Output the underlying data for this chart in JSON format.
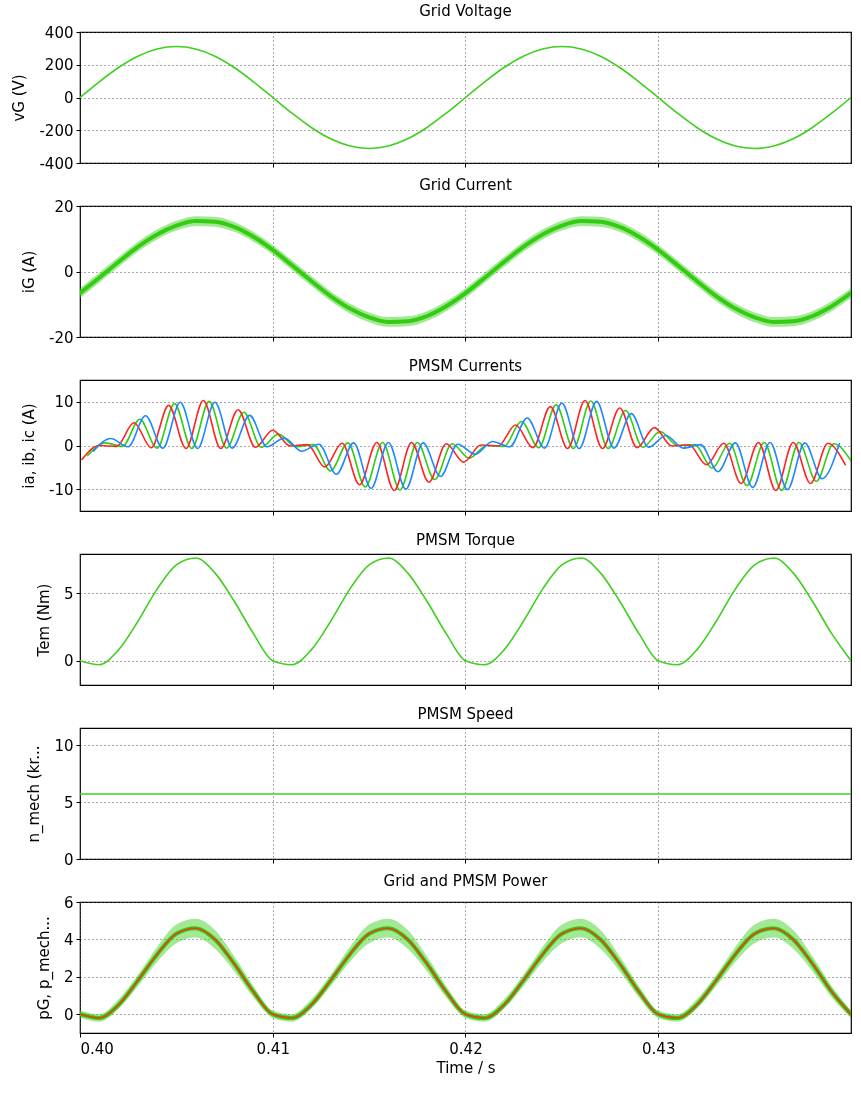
{
  "chart_data": [
    {
      "type": "line",
      "title": "Grid Voltage",
      "ylabel": "vG (V)",
      "xlim": [
        0.4,
        0.44
      ],
      "xticks": [
        0.41,
        0.42,
        0.43
      ],
      "ylim": [
        -400,
        400
      ],
      "yticks": [
        -400,
        -200,
        0,
        200,
        400
      ],
      "grid": true,
      "tick_labels": "y",
      "x": [
        0.4,
        0.401,
        0.402,
        0.403,
        0.404,
        0.405,
        0.406,
        0.407,
        0.408,
        0.409,
        0.41,
        0.411,
        0.412,
        0.413,
        0.414,
        0.415,
        0.416,
        0.417,
        0.418,
        0.419,
        0.42,
        0.421,
        0.422,
        0.423,
        0.424,
        0.425,
        0.426,
        0.427,
        0.428,
        0.429,
        0.43,
        0.431,
        0.432,
        0.433,
        0.434,
        0.435,
        0.436,
        0.437,
        0.438,
        0.439,
        0.44
      ],
      "series": [
        {
          "color": "#3fcf1f",
          "values": [
            0,
            96,
            183,
            252,
            296,
            311,
            296,
            252,
            183,
            96,
            0,
            -96,
            -183,
            -252,
            -296,
            -311,
            -296,
            -252,
            -183,
            -96,
            0,
            96,
            183,
            252,
            296,
            311,
            296,
            252,
            183,
            96,
            0,
            -96,
            -183,
            -252,
            -296,
            -311,
            -296,
            -252,
            -183,
            -96,
            0
          ]
        }
      ]
    },
    {
      "type": "line",
      "title": "Grid Current",
      "ylabel": "iG (A)",
      "xlim": [
        0.4,
        0.44
      ],
      "xticks": [
        0.41,
        0.42,
        0.43
      ],
      "ylim": [
        -20,
        20
      ],
      "yticks": [
        -20,
        0,
        20
      ],
      "grid": true,
      "tick_labels": "y",
      "x": [
        0.4,
        0.401,
        0.402,
        0.403,
        0.404,
        0.405,
        0.406,
        0.407,
        0.408,
        0.409,
        0.41,
        0.411,
        0.412,
        0.413,
        0.414,
        0.415,
        0.416,
        0.417,
        0.418,
        0.419,
        0.42,
        0.421,
        0.422,
        0.423,
        0.424,
        0.425,
        0.426,
        0.427,
        0.428,
        0.429,
        0.43,
        0.431,
        0.432,
        0.433,
        0.434,
        0.435,
        0.436,
        0.437,
        0.438,
        0.439,
        0.44
      ],
      "series": [
        {
          "color": "#33cc11",
          "values": [
            -6.6,
            -1.9,
            2.9,
            7.5,
            11.3,
            14.0,
            15.4,
            15.2,
            13.6,
            10.6,
            6.6,
            1.9,
            -2.9,
            -7.5,
            -11.3,
            -14.0,
            -15.4,
            -15.2,
            -13.6,
            -10.6,
            -6.6,
            -1.9,
            2.9,
            7.5,
            11.3,
            14.0,
            15.4,
            15.2,
            13.6,
            10.6,
            6.6,
            1.9,
            -2.9,
            -7.5,
            -11.3,
            -14.0,
            -15.4,
            -15.2,
            -13.6,
            -10.6,
            -6.6
          ],
          "lower": [
            -8.1,
            -3.4,
            1.4,
            6.0,
            9.8,
            12.5,
            13.9,
            13.7,
            12.1,
            9.1,
            5.1,
            0.4,
            -4.4,
            -9.0,
            -12.8,
            -15.5,
            -16.9,
            -16.7,
            -15.1,
            -12.1,
            -8.1,
            -3.4,
            1.4,
            6.0,
            9.8,
            12.5,
            13.9,
            13.7,
            12.1,
            9.1,
            5.1,
            0.4,
            -4.4,
            -9.0,
            -12.8,
            -15.5,
            -16.9,
            -16.7,
            -15.1,
            -12.1,
            -8.1
          ],
          "upper": [
            -5.1,
            -0.4,
            4.4,
            9.0,
            12.8,
            15.5,
            16.9,
            16.7,
            15.1,
            12.1,
            8.1,
            3.4,
            -1.4,
            -6.0,
            -9.8,
            -12.5,
            -13.9,
            -13.7,
            -12.1,
            -9.1,
            -5.1,
            -0.4,
            4.4,
            9.0,
            12.8,
            15.5,
            16.9,
            16.7,
            15.1,
            12.1,
            8.1,
            3.4,
            -1.4,
            -6.0,
            -9.8,
            -12.5,
            -13.9,
            -13.7,
            -12.1,
            -9.1,
            -5.1
          ]
        }
      ]
    },
    {
      "type": "line",
      "title": "PMSM Currents",
      "ylabel": "ia, ib, ic (A)",
      "xlim": [
        0.4,
        0.44
      ],
      "xticks": [
        0.41,
        0.42,
        0.43
      ],
      "ylim": [
        -15,
        15
      ],
      "yticks": [
        -10,
        0,
        10
      ],
      "grid": true,
      "tick_labels": "y",
      "series": [
        {
          "color": "#33cc11",
          "x": [
            0.4004,
            0.4013,
            0.4022,
            0.4031,
            0.404,
            0.4049,
            0.4058,
            0.4067,
            0.4076,
            0.4085,
            0.4094,
            0.4103,
            0.4112,
            0.4121,
            0.413,
            0.4139,
            0.4148,
            0.4157,
            0.4166,
            0.4175,
            0.4184,
            0.4193,
            0.4202,
            0.4211,
            0.422,
            0.4229,
            0.4238,
            0.4247,
            0.4256,
            0.4265,
            0.4274,
            0.4283,
            0.4292,
            0.4301,
            0.431,
            0.4319,
            0.4328,
            0.4337,
            0.4346,
            0.4355,
            0.4364,
            0.4373,
            0.4382,
            0.4391,
            0.44
          ],
          "values": [
            -2.3,
            0.6,
            -0.2,
            6.0,
            -0.6,
            9.6,
            -0.7,
            10.1,
            -0.6,
            7.6,
            -0.4,
            2.6,
            -0.3,
            0.2,
            -5.8,
            0.6,
            -9.5,
            0.7,
            -10.2,
            0.7,
            -7.8,
            0.4,
            -2.9,
            0.0,
            -0.2,
            5.5,
            -0.5,
            9.3,
            -0.7,
            10.2,
            -0.7,
            8.0,
            -0.4,
            3.2,
            0.0,
            0.2,
            -5.2,
            0.5,
            -9.2,
            0.7,
            -10.3,
            0.7,
            -8.2,
            0.4,
            -3.5
          ]
        },
        {
          "color": "#ff2424",
          "x": [
            0.4001,
            0.401,
            0.4019,
            0.4028,
            0.4037,
            0.4046,
            0.4055,
            0.4064,
            0.4073,
            0.4082,
            0.4091,
            0.41,
            0.4109,
            0.4118,
            0.4127,
            0.4136,
            0.4145,
            0.4154,
            0.4163,
            0.4172,
            0.4181,
            0.419,
            0.4199,
            0.4208,
            0.4217,
            0.4226,
            0.4235,
            0.4244,
            0.4253,
            0.4262,
            0.4271,
            0.428,
            0.4289,
            0.4298,
            0.4307,
            0.4316,
            0.4325,
            0.4334,
            0.4343,
            0.4352,
            0.4361,
            0.437,
            0.4379,
            0.4388,
            0.4397
          ],
          "values": [
            -3.2,
            0.0,
            -0.2,
            5.2,
            -0.5,
            9.2,
            -0.7,
            10.3,
            -0.7,
            8.2,
            -0.4,
            3.5,
            -0.1,
            0.2,
            -4.9,
            0.5,
            -9.0,
            0.7,
            -10.3,
            0.7,
            -8.4,
            0.4,
            -3.8,
            0.1,
            -0.1,
            4.7,
            -0.5,
            8.9,
            -0.7,
            10.3,
            -0.7,
            8.6,
            -0.5,
            4.1,
            -0.1,
            0.1,
            -4.4,
            0.5,
            -8.7,
            0.7,
            -10.3,
            0.7,
            -8.7,
            0.5,
            -4.4
          ]
        },
        {
          "color": "#1e88ff",
          "x": [
            0.4007,
            0.4016,
            0.4025,
            0.4034,
            0.4043,
            0.4052,
            0.4061,
            0.407,
            0.4079,
            0.4088,
            0.4097,
            0.4106,
            0.4115,
            0.4124,
            0.4133,
            0.4142,
            0.4151,
            0.416,
            0.4169,
            0.4178,
            0.4187,
            0.4196,
            0.4205,
            0.4214,
            0.4223,
            0.4232,
            0.4241,
            0.425,
            0.4259,
            0.4268,
            0.4277,
            0.4286,
            0.4295,
            0.4304,
            0.4313,
            0.4322,
            0.4331,
            0.434,
            0.4349,
            0.4358,
            0.4367,
            0.4376,
            0.4385,
            0.4394
          ],
          "values": [
            -1.3,
            1.6,
            -0.3,
            6.8,
            -0.6,
            9.9,
            -0.7,
            9.9,
            -0.6,
            6.9,
            -0.3,
            1.7,
            -1.3,
            0.3,
            -6.6,
            0.6,
            -9.8,
            0.7,
            -10.0,
            0.6,
            -7.1,
            0.3,
            -2.0,
            0.9,
            -0.3,
            6.3,
            -0.6,
            9.7,
            -0.7,
            10.1,
            -0.6,
            7.3,
            -0.4,
            2.3,
            -0.6,
            0.2,
            -6.0,
            0.6,
            -9.6,
            0.7,
            -10.1,
            0.6,
            -7.6,
            0.4
          ]
        }
      ]
    },
    {
      "type": "line",
      "title": "PMSM Torque",
      "ylabel": "Tem (Nm)",
      "xlim": [
        0.4,
        0.44
      ],
      "xticks": [
        0.41,
        0.42,
        0.43
      ],
      "ylim": [
        -1.8,
        7.9
      ],
      "yticks": [
        0,
        5
      ],
      "grid": true,
      "tick_labels": "y",
      "x": [
        0.4,
        0.401,
        0.402,
        0.403,
        0.404,
        0.405,
        0.406,
        0.407,
        0.408,
        0.409,
        0.41,
        0.411,
        0.412,
        0.413,
        0.414,
        0.415,
        0.416,
        0.417,
        0.418,
        0.419,
        0.42,
        0.421,
        0.422,
        0.423,
        0.424,
        0.425,
        0.426,
        0.427,
        0.428,
        0.429,
        0.43,
        0.431,
        0.432,
        0.433,
        0.434,
        0.435,
        0.436,
        0.437,
        0.438,
        0.439,
        0.44
      ],
      "series": [
        {
          "color": "#3fcf1f",
          "values": [
            0.0,
            -0.3,
            0.8,
            2.9,
            5.3,
            7.1,
            7.6,
            6.5,
            4.4,
            2.0,
            0.0,
            -0.3,
            0.8,
            2.9,
            5.3,
            7.1,
            7.6,
            6.5,
            4.4,
            2.0,
            0.0,
            -0.3,
            0.8,
            2.9,
            5.3,
            7.1,
            7.6,
            6.5,
            4.4,
            2.0,
            0.0,
            -0.3,
            0.8,
            2.9,
            5.3,
            7.1,
            7.6,
            6.5,
            4.4,
            2.0,
            0.0
          ]
        }
      ]
    },
    {
      "type": "line",
      "title": "PMSM Speed",
      "ylabel": "n_mech (kr...",
      "xlim": [
        0.4,
        0.44
      ],
      "xticks": [
        0.41,
        0.42,
        0.43
      ],
      "ylim": [
        0,
        11.5
      ],
      "yticks": [
        0,
        5,
        10
      ],
      "grid": true,
      "tick_labels": "y",
      "x": [
        0.4,
        0.44
      ],
      "series": [
        {
          "color": "#3fcf1f",
          "values": [
            5.7,
            5.7
          ]
        }
      ]
    },
    {
      "type": "line",
      "title": "Grid and PMSM Power",
      "ylabel": "pG, p_mech...",
      "xlabel": "Time / s",
      "xlim": [
        0.4,
        0.44
      ],
      "xticks": [
        {
          "value": 0.4,
          "label": "0.40"
        },
        0.41,
        0.42,
        0.43
      ],
      "ylim": [
        -1,
        6
      ],
      "yticks": [
        0,
        2,
        4,
        6
      ],
      "grid": true,
      "x": [
        0.4,
        0.401,
        0.402,
        0.403,
        0.404,
        0.405,
        0.406,
        0.407,
        0.408,
        0.409,
        0.41,
        0.411,
        0.412,
        0.413,
        0.414,
        0.415,
        0.416,
        0.417,
        0.418,
        0.419,
        0.42,
        0.421,
        0.422,
        0.423,
        0.424,
        0.425,
        0.426,
        0.427,
        0.428,
        0.429,
        0.43,
        0.431,
        0.432,
        0.433,
        0.434,
        0.435,
        0.436,
        0.437,
        0.438,
        0.439,
        0.44
      ],
      "series": [
        {
          "color": "#33cc11",
          "values": [
            0,
            -0.2,
            0.5,
            1.8,
            3.2,
            4.3,
            4.6,
            4.0,
            2.7,
            1.2,
            0,
            -0.2,
            0.5,
            1.8,
            3.2,
            4.3,
            4.6,
            4.0,
            2.7,
            1.2,
            0,
            -0.2,
            0.5,
            1.8,
            3.2,
            4.3,
            4.6,
            4.0,
            2.7,
            1.2,
            0,
            -0.2,
            0.5,
            1.8,
            3.2,
            4.3,
            4.6,
            4.0,
            2.7,
            1.2,
            0
          ],
          "lower": [
            -0.2,
            -0.4,
            0.3,
            1.5,
            2.8,
            3.8,
            4.1,
            3.5,
            2.3,
            0.9,
            -0.2,
            -0.4,
            0.3,
            1.5,
            2.8,
            3.8,
            4.1,
            3.5,
            2.3,
            0.9,
            -0.2,
            -0.4,
            0.3,
            1.5,
            2.8,
            3.8,
            4.1,
            3.5,
            2.3,
            0.9,
            -0.2,
            -0.4,
            0.3,
            1.5,
            2.8,
            3.8,
            4.1,
            3.5,
            2.3,
            0.9,
            -0.2
          ],
          "upper": [
            0.2,
            0.0,
            0.8,
            2.1,
            3.6,
            4.8,
            5.1,
            4.5,
            3.1,
            1.5,
            0.2,
            0.0,
            0.8,
            2.1,
            3.6,
            4.8,
            5.1,
            4.5,
            3.1,
            1.5,
            0.2,
            0.0,
            0.8,
            2.1,
            3.6,
            4.8,
            5.1,
            4.5,
            3.1,
            1.5,
            0.2,
            0.0,
            0.8,
            2.1,
            3.6,
            4.8,
            5.1,
            4.5,
            3.1,
            1.5,
            0.2
          ]
        },
        {
          "color": "#e8401c",
          "values": [
            0,
            -0.2,
            0.5,
            1.8,
            3.2,
            4.3,
            4.6,
            4.0,
            2.7,
            1.2,
            0,
            -0.2,
            0.5,
            1.8,
            3.2,
            4.3,
            4.6,
            4.0,
            2.7,
            1.2,
            0,
            -0.2,
            0.5,
            1.8,
            3.2,
            4.3,
            4.6,
            4.0,
            2.7,
            1.2,
            0,
            -0.2,
            0.5,
            1.8,
            3.2,
            4.3,
            4.6,
            4.0,
            2.7,
            1.2,
            0
          ]
        }
      ]
    }
  ]
}
